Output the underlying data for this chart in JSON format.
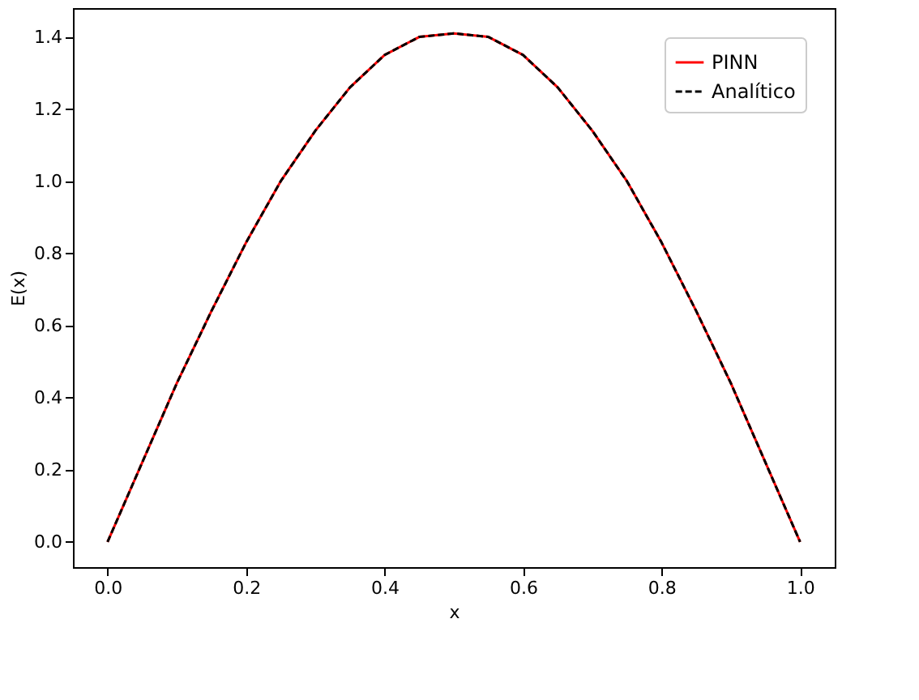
{
  "chart_data": {
    "type": "line",
    "xlabel": "x",
    "ylabel": "E(x)",
    "x": [
      0,
      0.05,
      0.1,
      0.15,
      0.2,
      0.25,
      0.3,
      0.35,
      0.4,
      0.45,
      0.5,
      0.55,
      0.6,
      0.65,
      0.7,
      0.75,
      0.8,
      0.85,
      0.9,
      0.95,
      1.0
    ],
    "series": [
      {
        "name": "PINN",
        "color": "#ff0000",
        "line_style": "solid",
        "values": [
          0,
          0.22,
          0.44,
          0.64,
          0.83,
          1.0,
          1.14,
          1.26,
          1.35,
          1.4,
          1.41,
          1.4,
          1.35,
          1.26,
          1.14,
          1.0,
          0.83,
          0.64,
          0.44,
          0.22,
          0
        ]
      },
      {
        "name": "Analítico",
        "color": "#000000",
        "line_style": "dashed",
        "values": [
          0,
          0.22,
          0.44,
          0.64,
          0.83,
          1.0,
          1.14,
          1.26,
          1.35,
          1.4,
          1.41,
          1.4,
          1.35,
          1.26,
          1.14,
          1.0,
          0.83,
          0.64,
          0.44,
          0.22,
          0
        ]
      }
    ],
    "xlim": [
      -0.05,
      1.05
    ],
    "ylim": [
      -0.07,
      1.48
    ],
    "xticks": [
      {
        "value": 0,
        "label": "0.0"
      },
      0.2,
      0.4,
      0.6,
      0.8,
      {
        "value": 1,
        "label": "1.0"
      }
    ],
    "yticks": [
      {
        "value": 0,
        "label": "0.0"
      },
      0.2,
      0.4,
      0.6,
      0.8,
      {
        "value": 1,
        "label": "1.0"
      },
      1.2,
      1.4
    ],
    "grid": false,
    "legend": "top right"
  }
}
